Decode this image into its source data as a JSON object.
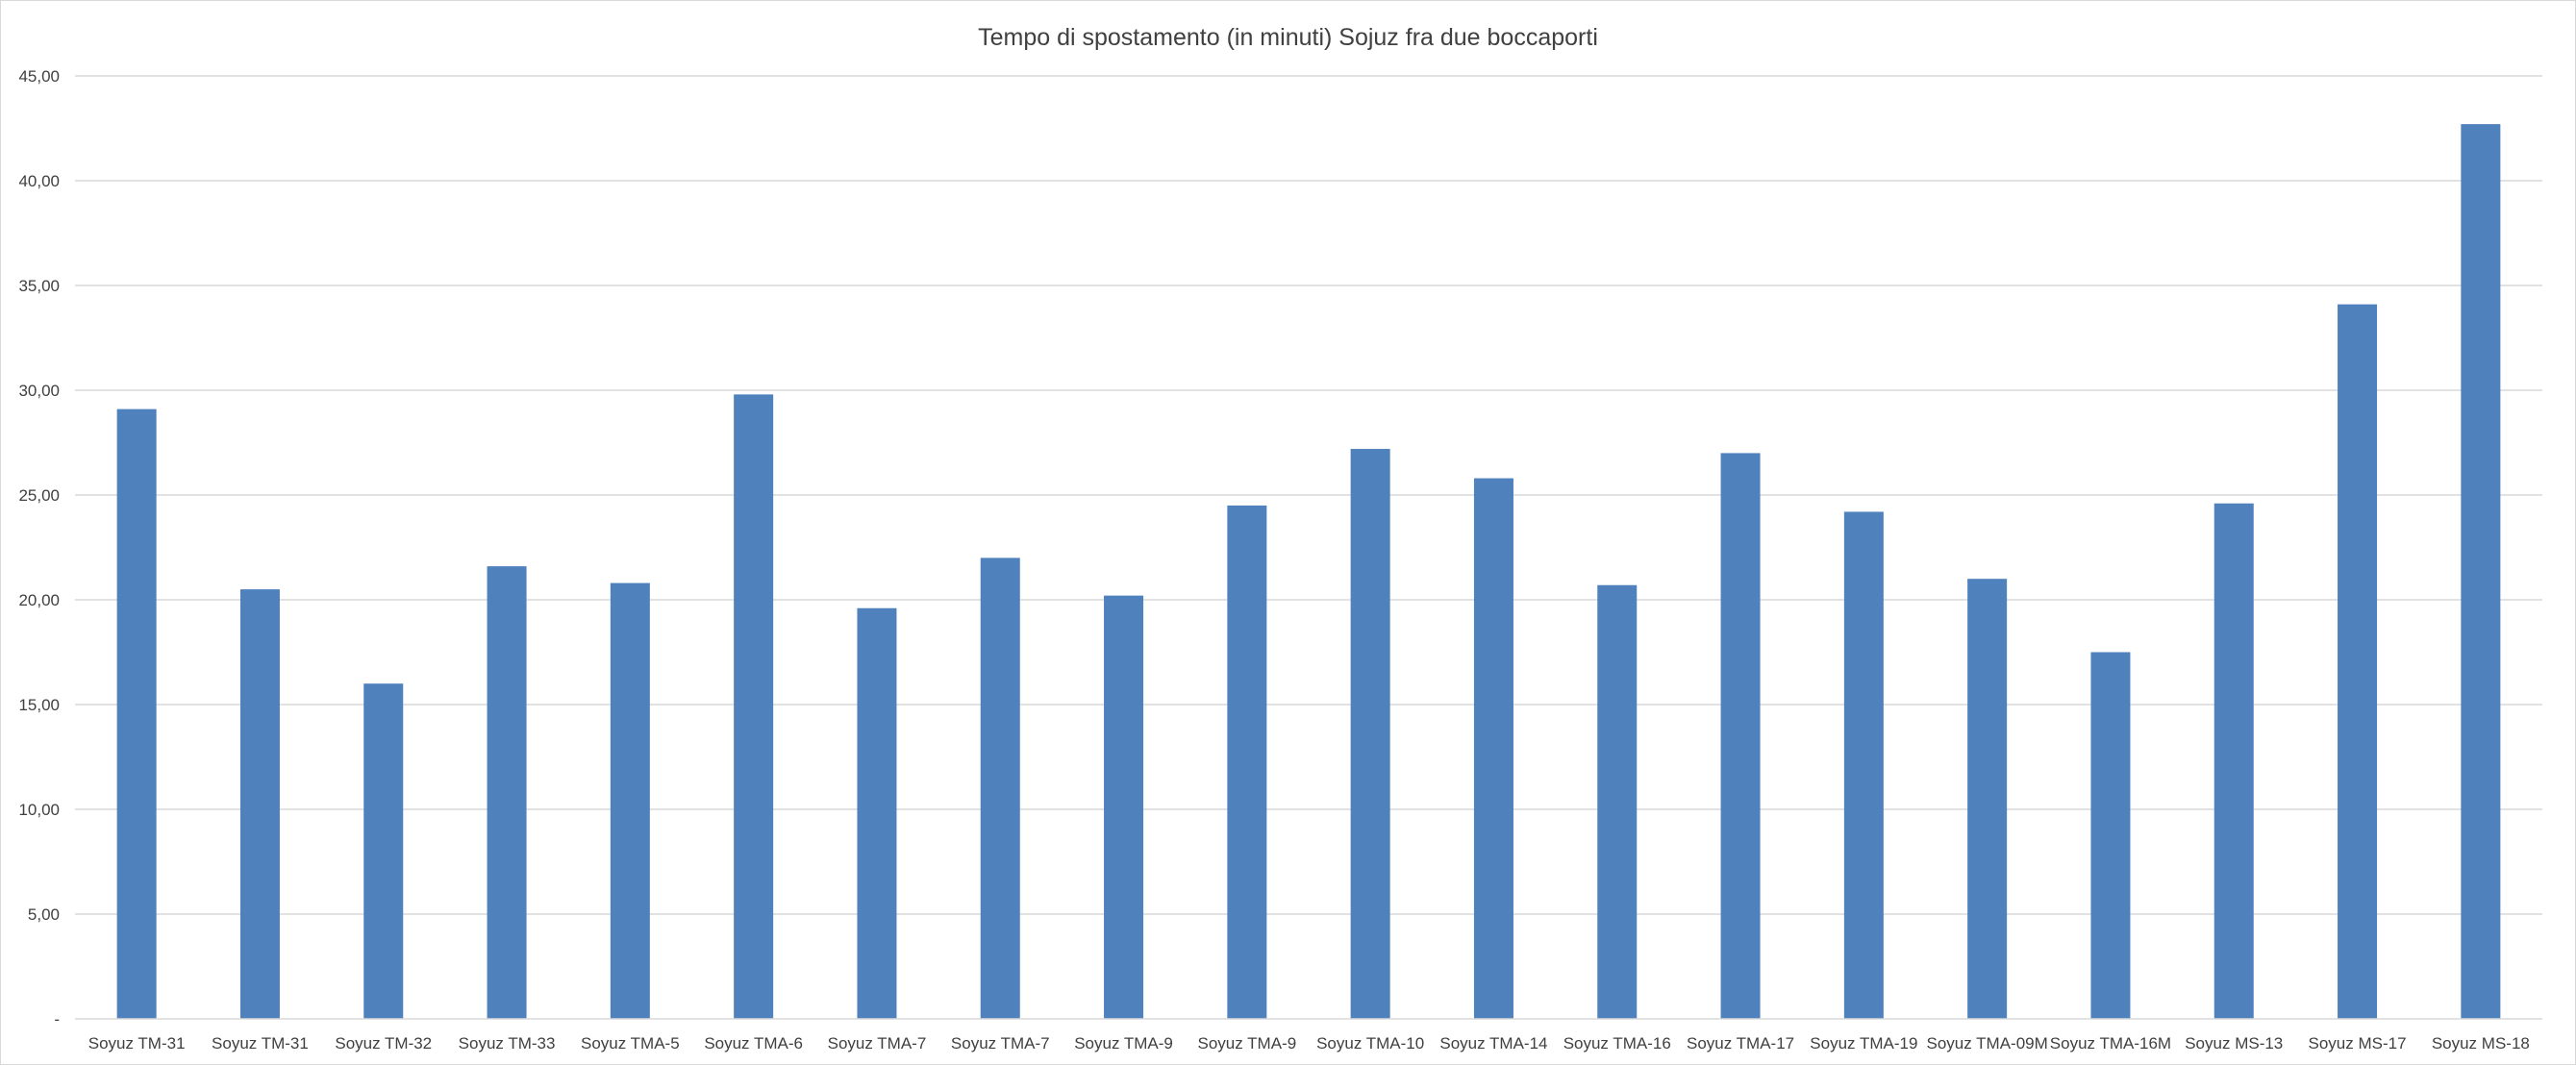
{
  "chart_data": {
    "type": "bar",
    "title": "Tempo di spostamento (in minuti) Sojuz fra due boccaporti",
    "xlabel": "",
    "ylabel": "",
    "ylim": [
      0,
      45
    ],
    "yticks": [
      "-",
      "5,00",
      "10,00",
      "15,00",
      "20,00",
      "25,00",
      "30,00",
      "35,00",
      "40,00",
      "45,00"
    ],
    "grid": true,
    "legend": "none",
    "bar_color": "#4f81bd",
    "categories": [
      "Soyuz TM-31",
      "Soyuz TM-31",
      "Soyuz TM-32",
      "Soyuz TM-33",
      "Soyuz TMA-5",
      "Soyuz TMA-6",
      "Soyuz TMA-7",
      "Soyuz TMA-7",
      "Soyuz TMA-9",
      "Soyuz TMA-9",
      "Soyuz TMA-10",
      "Soyuz TMA-14",
      "Soyuz TMA-16",
      "Soyuz TMA-17",
      "Soyuz TMA-19",
      "Soyuz TMA-09M",
      "Soyuz TMA-16M",
      "Soyuz MS-13",
      "Soyuz MS-17",
      "Soyuz MS-18"
    ],
    "values": [
      29.1,
      20.5,
      16.0,
      21.6,
      20.8,
      29.8,
      19.6,
      22.0,
      20.2,
      24.5,
      27.2,
      25.8,
      20.7,
      27.0,
      24.2,
      21.0,
      17.5,
      24.6,
      34.1,
      42.7
    ]
  }
}
